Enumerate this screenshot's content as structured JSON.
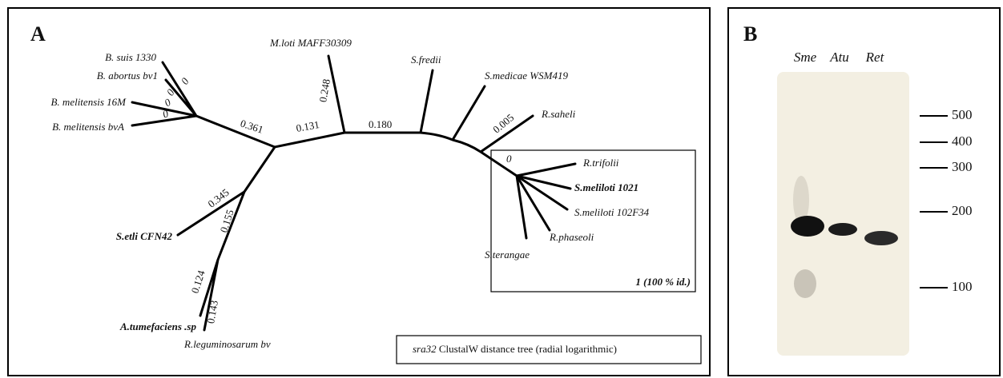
{
  "panel_a": {
    "label": "A",
    "taxa": [
      "B. suis 1330",
      "B. abortus bv1",
      "B. melitensis 16M",
      "B. melitensis bvA",
      "M.loti MAFF30309",
      "S.fredii",
      "S.medicae WSM419",
      "R.saheli",
      "R.trifolii",
      "S.meliloti 1021",
      "S.meliloti 102F34",
      "R.phaseoli",
      "S.terangae",
      "S.etli CFN42",
      "A.tumefaciens .sp",
      "R.leguminosarum bv"
    ],
    "branch_lengths": [
      "0",
      "0",
      "0",
      "0",
      "0.361",
      "0.131",
      "0.248",
      "0.180",
      "0.005",
      "0",
      "0.345",
      "0.155",
      "0.124",
      "0.143"
    ],
    "inset_label": "1 (100 % id.)",
    "caption": {
      "gene": "sra32",
      "text": "ClustalW distance tree (radial logarithmic)"
    }
  },
  "panel_b": {
    "label": "B",
    "lanes": [
      "Sme",
      "Atu",
      "Ret"
    ],
    "size_markers": [
      500,
      400,
      300,
      200,
      100
    ]
  }
}
